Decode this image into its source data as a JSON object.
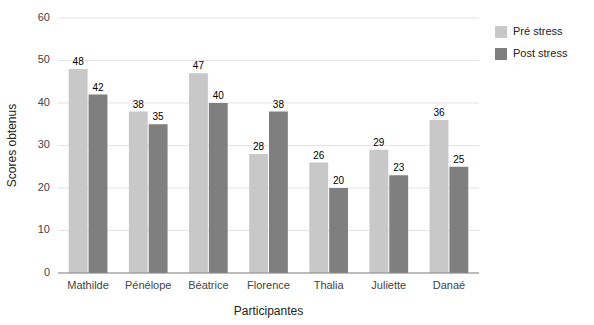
{
  "chart_data": {
    "type": "bar",
    "categories": [
      "Mathilde",
      "Pénélope",
      "Béatrice",
      "Florence",
      "Thalia",
      "Juliette",
      "Danaé"
    ],
    "series": [
      {
        "name": "Pré stress",
        "color": "#c8c8c8",
        "values": [
          48,
          38,
          47,
          28,
          26,
          29,
          36
        ]
      },
      {
        "name": "Post stress",
        "color": "#7f7f7f",
        "values": [
          42,
          35,
          40,
          38,
          20,
          23,
          25
        ]
      }
    ],
    "xlabel": "Participantes",
    "ylabel": "Scores obtenus",
    "ylim": [
      0,
      60
    ],
    "yticks": [
      0,
      10,
      20,
      30,
      40,
      50,
      60
    ],
    "grid": true,
    "legend": "right",
    "data_labels": true
  }
}
